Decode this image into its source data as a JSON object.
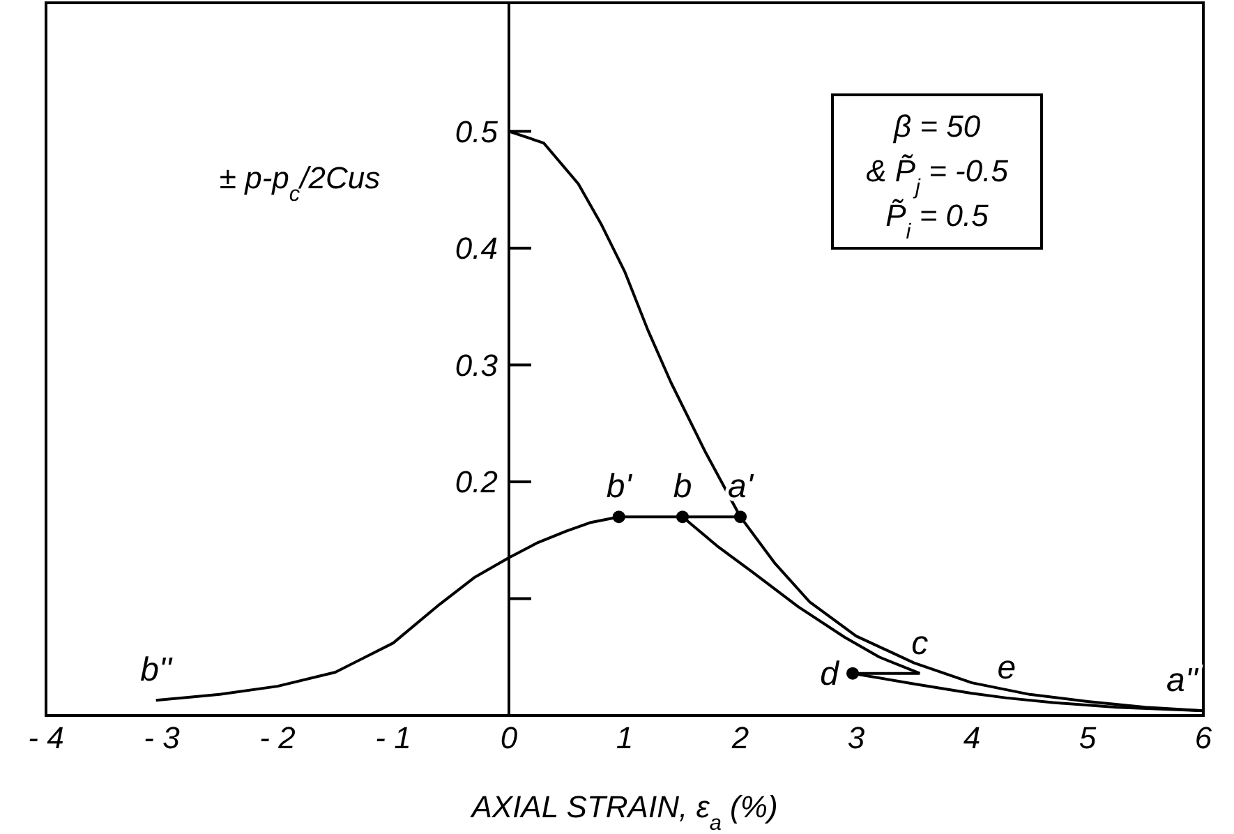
{
  "chart_data": {
    "type": "line",
    "xlabel": "AXIAL STRAIN, ε$_{a}$ (%)",
    "ylabel": "± p-p$_{c}$/2Cus",
    "xlim": [
      -4,
      6
    ],
    "xticks": [
      -4,
      -3,
      -2,
      -1,
      0,
      1,
      2,
      3,
      4,
      5,
      6
    ],
    "ylim": [
      0,
      0.61
    ],
    "yticks": [
      {
        "value": 0.1,
        "label": null
      },
      0.2,
      0.3,
      0.4,
      0.5
    ],
    "grid": false,
    "legend": false,
    "marker": "none",
    "line_style": "solid",
    "series": [
      {
        "color": "#000000",
        "x": [
          0,
          0.3,
          0.6,
          0.8,
          1.0,
          1.2,
          1.4,
          1.7,
          2.0,
          2.3,
          2.6,
          3.0,
          3.5,
          4.0,
          4.5,
          5.0,
          5.5,
          6.0
        ],
        "values": [
          0.5,
          0.49,
          0.455,
          0.42,
          0.38,
          0.33,
          0.285,
          0.225,
          0.17,
          0.13,
          0.097,
          0.068,
          0.045,
          0.028,
          0.018,
          0.012,
          0.007,
          0.004
        ]
      },
      {
        "color": "#000000",
        "x": [
          2.0,
          1.5,
          0.95
        ],
        "values": [
          0.17,
          0.17,
          0.17
        ]
      },
      {
        "color": "#000000",
        "x": [
          0.95,
          0.7,
          0.5,
          0.25,
          0,
          -0.3,
          -0.6,
          -1,
          -1.5,
          -2,
          -2.5,
          -3.05
        ],
        "values": [
          0.17,
          0.165,
          0.158,
          0.148,
          0.135,
          0.118,
          0.095,
          0.062,
          0.037,
          0.025,
          0.018,
          0.013
        ]
      },
      {
        "color": "#000000",
        "x": [
          1.5,
          1.8,
          2.1,
          2.5,
          2.9,
          3.2,
          3.55
        ],
        "values": [
          0.17,
          0.145,
          0.123,
          0.093,
          0.067,
          0.05,
          0.036
        ]
      },
      {
        "color": "#000000",
        "x": [
          3.55,
          2.97
        ],
        "values": [
          0.036,
          0.036
        ]
      },
      {
        "color": "#000000",
        "x": [
          2.97,
          3.5,
          4.0,
          4.3,
          4.7,
          5.25,
          6.0
        ],
        "values": [
          0.036,
          0.027,
          0.019,
          0.015,
          0.011,
          0.007,
          0.004
        ]
      },
      {
        "type": "scatter",
        "marker": "circle",
        "color": "#000000",
        "x": [
          2.0,
          1.5,
          0.95,
          2.97
        ],
        "values": [
          0.17,
          0.17,
          0.17,
          0.036
        ]
      }
    ],
    "annotations": [
      {
        "text": "a'",
        "x": 2.0,
        "y": 0.17
      },
      {
        "text": "b",
        "x": 1.5,
        "y": 0.17
      },
      {
        "text": "b'",
        "x": 0.95,
        "y": 0.17
      },
      {
        "text": "b''",
        "x": -3.05,
        "y": 0.013
      },
      {
        "text": "c",
        "x": 3.55,
        "y": 0.036
      },
      {
        "text": "d",
        "x": 2.97,
        "y": 0.036
      },
      {
        "text": "e",
        "x": 4.3,
        "y": 0.015
      },
      {
        "text": "a''",
        "x": 6.0,
        "y": 0.004
      },
      "β = 50",
      "& P̃$_{j}$ = -0.5",
      "P̃$_{i}$ = 0.5"
    ]
  }
}
